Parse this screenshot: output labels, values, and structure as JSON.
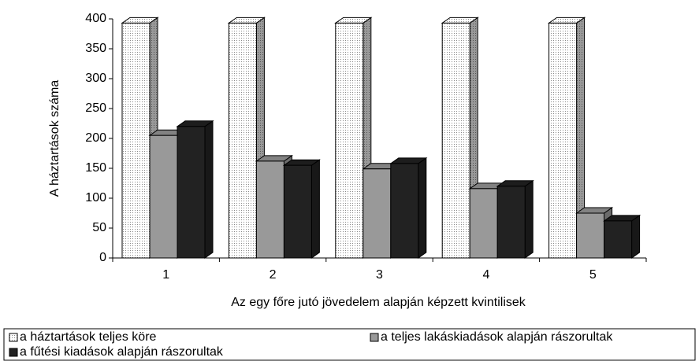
{
  "chart_data": {
    "type": "bar3d",
    "y_label": "A háztartások száma",
    "x_label": "Az egy főre jutó jövedelem alapján képzett kvintilisek",
    "categories": [
      "1",
      "2",
      "3",
      "4",
      "5"
    ],
    "series": [
      {
        "name": "a háztartások teljes köre",
        "color": "#ffffff",
        "pattern": "dots",
        "values": [
          393,
          393,
          393,
          393,
          393
        ]
      },
      {
        "name": "a teljes lakáskiadások alapján rászorultak",
        "color": "#999999",
        "values": [
          205,
          162,
          149,
          116,
          75
        ]
      },
      {
        "name": "a fűtési kiadások alapján rászorultak",
        "color": "#222222",
        "values": [
          220,
          155,
          158,
          120,
          62
        ]
      }
    ],
    "ylim": [
      0,
      400
    ],
    "yticks": [
      0,
      50,
      100,
      150,
      200,
      250,
      300,
      350,
      400
    ],
    "legend": "bottom"
  }
}
